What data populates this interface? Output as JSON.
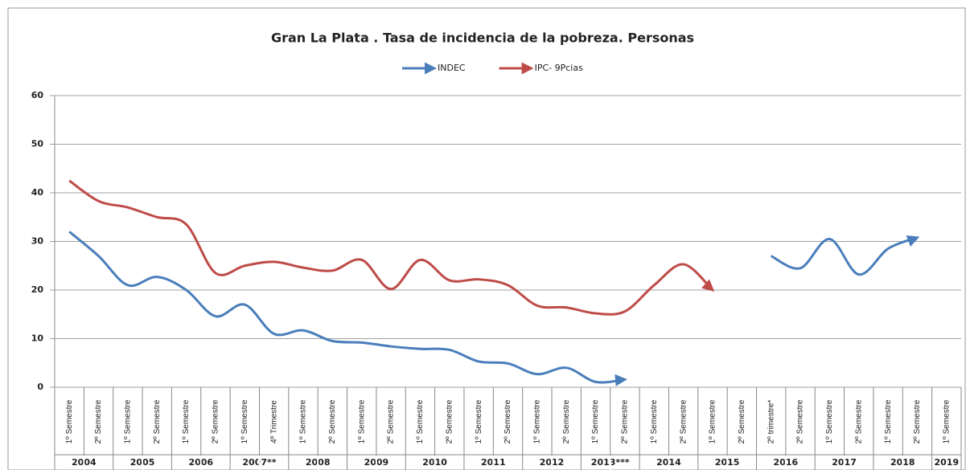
{
  "chart_data": {
    "type": "line",
    "title": "Gran La Plata . Tasa de incidencia de la pobreza. Personas",
    "categories": [
      "1º Semestre",
      "2º Semestre",
      "1º Semestre",
      "2º Semestre",
      "1º Semestre",
      "2º Semestre",
      "1º Semestre",
      "4º Trimestre",
      "1º Semestre",
      "2º Semestre",
      "1º Semestre",
      "2º Semestre",
      "1º Semestre",
      "2º Semestre",
      "1º Semestre",
      "2º Semestre",
      "1º Semestre",
      "2º Semestre",
      "1º Semestre",
      "2º Semestre",
      "1º Semestre",
      "2º Semestre",
      "1º Semestre",
      "2º Semestre",
      "2º trimestre*",
      "2º Semestre",
      "1º Semestre",
      "2º Semestre",
      "1º Semestre",
      "2º Semestre",
      "1º Semestre"
    ],
    "years": [
      "2004",
      "2004",
      "2005",
      "2005",
      "2006",
      "2006",
      "2007**",
      "2007**",
      "2008",
      "2008",
      "2009",
      "2009",
      "2010",
      "2010",
      "2011",
      "2011",
      "2012",
      "2012",
      "2013***",
      "2013***",
      "2014",
      "2014",
      "2015",
      "2015",
      "2016",
      "2016",
      "2017",
      "2017",
      "2018",
      "2018",
      "2019"
    ],
    "series": [
      {
        "name": "INDEC",
        "color": "#4a7ebb",
        "values": [
          32,
          27,
          21,
          22.7,
          20,
          14.6,
          17,
          11,
          11.7,
          9.5,
          9.2,
          8.4,
          7.9,
          7.7,
          5.3,
          4.9,
          2.7,
          4,
          1.1,
          1.6,
          null,
          null,
          null,
          null,
          27,
          24.5,
          30.5,
          23.2,
          28.5,
          30.8,
          null
        ]
      },
      {
        "name": "IPC- 9Pcias",
        "color": "#be4b48",
        "values": [
          42.5,
          38.3,
          37,
          35,
          33.5,
          23.5,
          25,
          25.8,
          24.6,
          24,
          26.2,
          20.2,
          26.2,
          22,
          22.2,
          21,
          16.8,
          16.4,
          15.2,
          15.6,
          21,
          25.3,
          20,
          null,
          null,
          null,
          null,
          null,
          null,
          null,
          null
        ]
      }
    ],
    "ylim": [
      0,
      60
    ],
    "yticks": [
      0,
      10,
      20,
      30,
      40,
      50,
      60
    ],
    "grid": true
  }
}
